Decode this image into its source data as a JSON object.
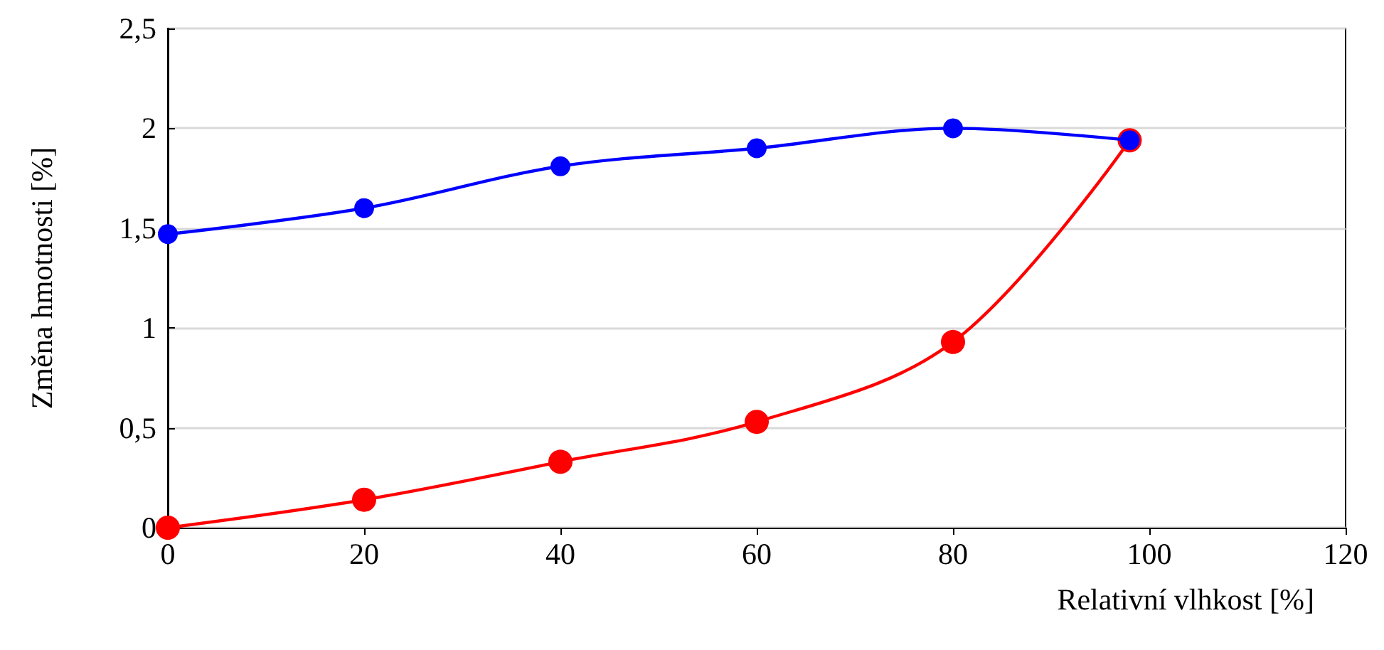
{
  "chart_data": {
    "type": "line",
    "xlabel": "Relativní vlhkost [%]",
    "ylabel": "Změna hmotnosti [%]",
    "xlim": [
      0,
      120
    ],
    "xticks": [
      0,
      20,
      40,
      60,
      80,
      100,
      120
    ],
    "ylim": [
      0,
      2.5
    ],
    "yticks": [
      {
        "value": 0,
        "label": "0"
      },
      {
        "value": 0.5,
        "label": "0,5"
      },
      {
        "value": 1,
        "label": "1"
      },
      {
        "value": 1.5,
        "label": "1,5"
      },
      {
        "value": 2,
        "label": "2"
      },
      {
        "value": 2.5,
        "label": "2,5"
      }
    ],
    "grid": "y",
    "marker": "circle",
    "line_style": "solid",
    "series": [
      {
        "color": "#0000ff",
        "x": [
          0,
          20,
          40,
          60,
          80,
          98
        ],
        "values": [
          1.47,
          1.6,
          1.81,
          1.9,
          2.0,
          1.94
        ]
      },
      {
        "color": "#ff0000",
        "x": [
          0,
          20,
          40,
          60,
          80,
          98
        ],
        "values": [
          0,
          0.14,
          0.33,
          0.53,
          0.93,
          1.94
        ]
      }
    ]
  }
}
